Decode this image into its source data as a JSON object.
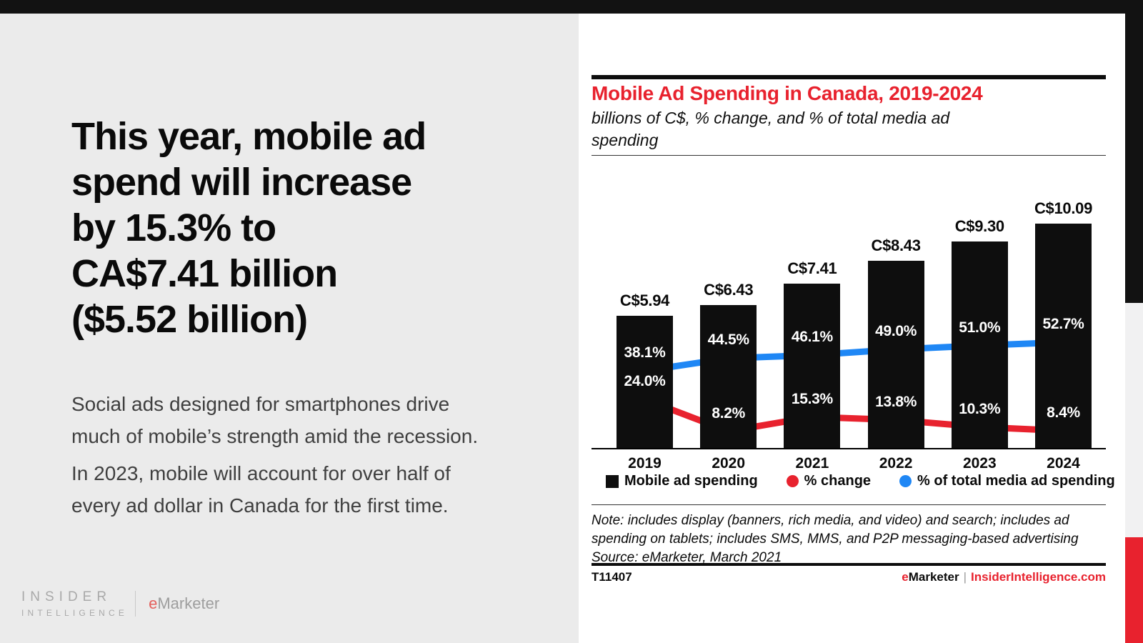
{
  "slide": {
    "headline": "This year, mobile ad\nspend will increase\nby 15.3% to\nCA$7.41 billion\n($5.52 billion)",
    "paragraph1": "Social ads designed for smartphones drive\nmuch of mobile’s strength amid the recession.",
    "paragraph2": "In 2023, mobile will account for over half of\nevery ad dollar in Canada for the first time.",
    "logo": {
      "line1": "INSIDER",
      "line2": "INTELLIGENCE",
      "emarketer_e": "e",
      "emarketer_rest": "Marketer"
    }
  },
  "chart": {
    "title": "Mobile Ad Spending in Canada, 2019-2024",
    "subtitle": "billions of C$, % change, and % of total media ad\nspending",
    "note": "Note: includes display (banners, rich media, and video) and search; includes ad\nspending on tablets; includes SMS, MMS, and P2P messaging-based advertising\nSource: eMarketer, March 2021",
    "footer_id": "T11407",
    "footer_brand_e": "e",
    "footer_brand_rest": "Marketer",
    "footer_separator": "|",
    "footer_url": "InsiderIntelligence.com"
  },
  "chart_data": {
    "type": "bar",
    "title": "Mobile Ad Spending in Canada, 2019-2024",
    "subtitle": "billions of C$, % change, and % of total media ad spending",
    "categories": [
      "2019",
      "2020",
      "2021",
      "2022",
      "2023",
      "2024"
    ],
    "grid": false,
    "legend_position": "bottom",
    "series": [
      {
        "name": "Mobile ad spending",
        "type": "bar",
        "unit": "billions of C$",
        "values": [
          5.94,
          6.43,
          7.41,
          8.43,
          9.3,
          10.09
        ],
        "labels": [
          "C$5.94",
          "C$6.43",
          "C$7.41",
          "C$8.43",
          "C$9.30",
          "C$10.09"
        ],
        "color": "#0e0e0e"
      },
      {
        "name": "% change",
        "type": "line",
        "unit": "%",
        "values": [
          24.0,
          8.2,
          15.3,
          13.8,
          10.3,
          8.4
        ],
        "labels": [
          "24.0%",
          "8.2%",
          "15.3%",
          "13.8%",
          "10.3%",
          "8.4%"
        ],
        "color": "#e8222e"
      },
      {
        "name": "% of total media ad spending",
        "type": "line",
        "unit": "%",
        "values": [
          38.1,
          44.5,
          46.1,
          49.0,
          51.0,
          52.7
        ],
        "labels": [
          "38.1%",
          "44.5%",
          "46.1%",
          "49.0%",
          "51.0%",
          "52.7%"
        ],
        "color": "#1f87f5"
      }
    ]
  },
  "colors": {
    "accent_red": "#e8222e",
    "accent_blue": "#1f87f5",
    "bar_black": "#0e0e0e",
    "left_panel_gray": "#ebebeb"
  }
}
